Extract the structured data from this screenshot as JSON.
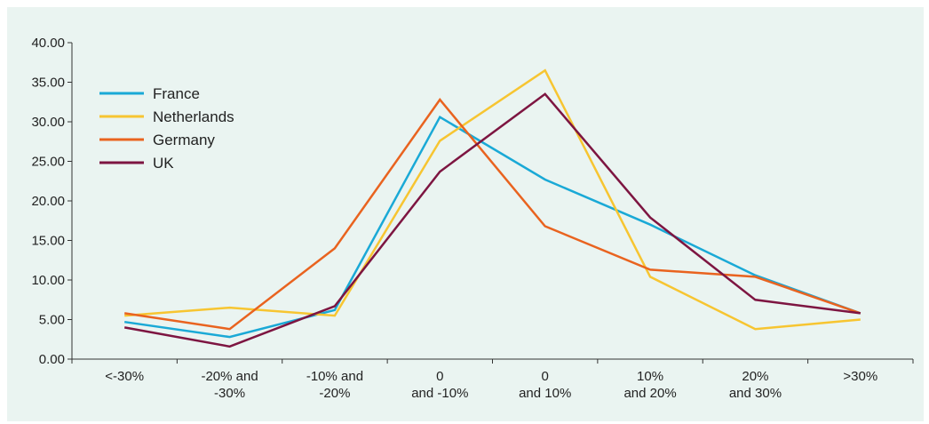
{
  "chart_data": {
    "type": "line",
    "title": "",
    "xlabel": "",
    "ylabel": "",
    "categories": [
      [
        "<-30%"
      ],
      [
        "-20% and",
        "-30%"
      ],
      [
        "-10% and",
        "-20%"
      ],
      [
        "0",
        "and -10%"
      ],
      [
        "0",
        "and 10%"
      ],
      [
        "10%",
        "and 20%"
      ],
      [
        "20%",
        "and 30%"
      ],
      [
        ">30%"
      ]
    ],
    "ylim": [
      0,
      40
    ],
    "yticks": [
      "0.00",
      "5.00",
      "10.00",
      "15.00",
      "20.00",
      "25.00",
      "30.00",
      "35.00",
      "40.00"
    ],
    "legend_position": "top-left",
    "grid": false,
    "series": [
      {
        "name": "France",
        "color": "#1aa9d6",
        "values": [
          4.7,
          2.8,
          6.2,
          30.6,
          22.7,
          17.0,
          10.6,
          5.8
        ]
      },
      {
        "name": "Netherlands",
        "color": "#f7c531",
        "values": [
          5.5,
          6.5,
          5.5,
          27.6,
          36.5,
          10.4,
          3.8,
          5.0
        ]
      },
      {
        "name": "Germany",
        "color": "#e9631f",
        "values": [
          5.8,
          3.8,
          14.0,
          32.8,
          16.8,
          11.3,
          10.4,
          5.8
        ]
      },
      {
        "name": "UK",
        "color": "#7d1541",
        "values": [
          4.0,
          1.6,
          6.7,
          23.7,
          33.5,
          17.9,
          7.5,
          5.8
        ]
      }
    ]
  }
}
